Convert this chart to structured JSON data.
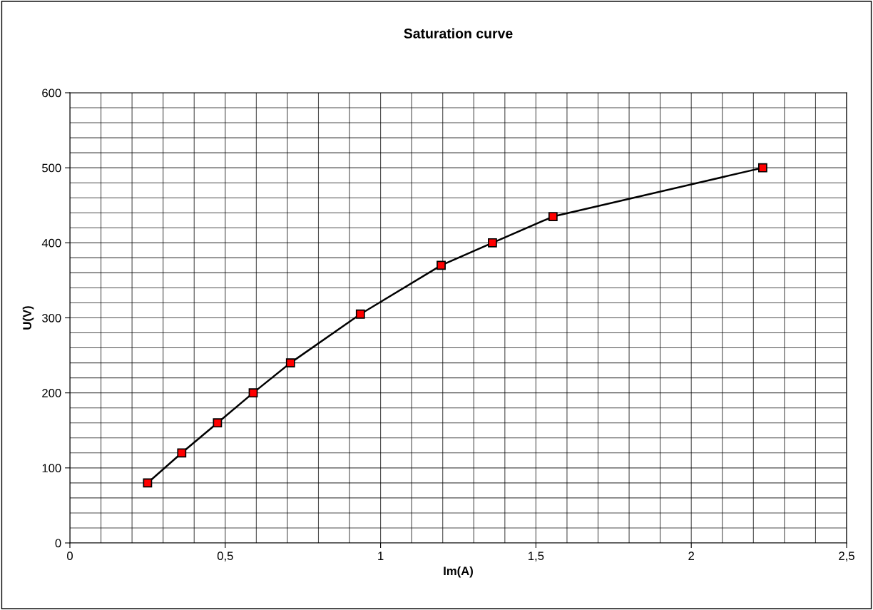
{
  "chart_data": {
    "type": "line",
    "title": "Saturation curve",
    "xlabel": "Im(A)",
    "ylabel": "U(V)",
    "x": [
      0.25,
      0.36,
      0.475,
      0.59,
      0.71,
      0.935,
      1.195,
      1.36,
      1.555,
      2.23
    ],
    "series": [
      {
        "color": "#ff0000",
        "values": [
          80,
          120,
          160,
          200,
          240,
          305,
          370,
          400,
          435,
          500
        ]
      }
    ],
    "xlim": [
      0,
      2.5
    ],
    "ylim": [
      0,
      600
    ],
    "xticks": [
      0,
      {
        "value": 0.5,
        "label": "0,5"
      },
      1,
      {
        "value": 1.5,
        "label": "1,5"
      },
      2,
      {
        "value": 2.5,
        "label": "2,5"
      }
    ],
    "yticks": [
      0,
      100,
      200,
      300,
      400,
      500,
      600
    ],
    "grid": true,
    "marker": "square",
    "line_style": "solid"
  }
}
